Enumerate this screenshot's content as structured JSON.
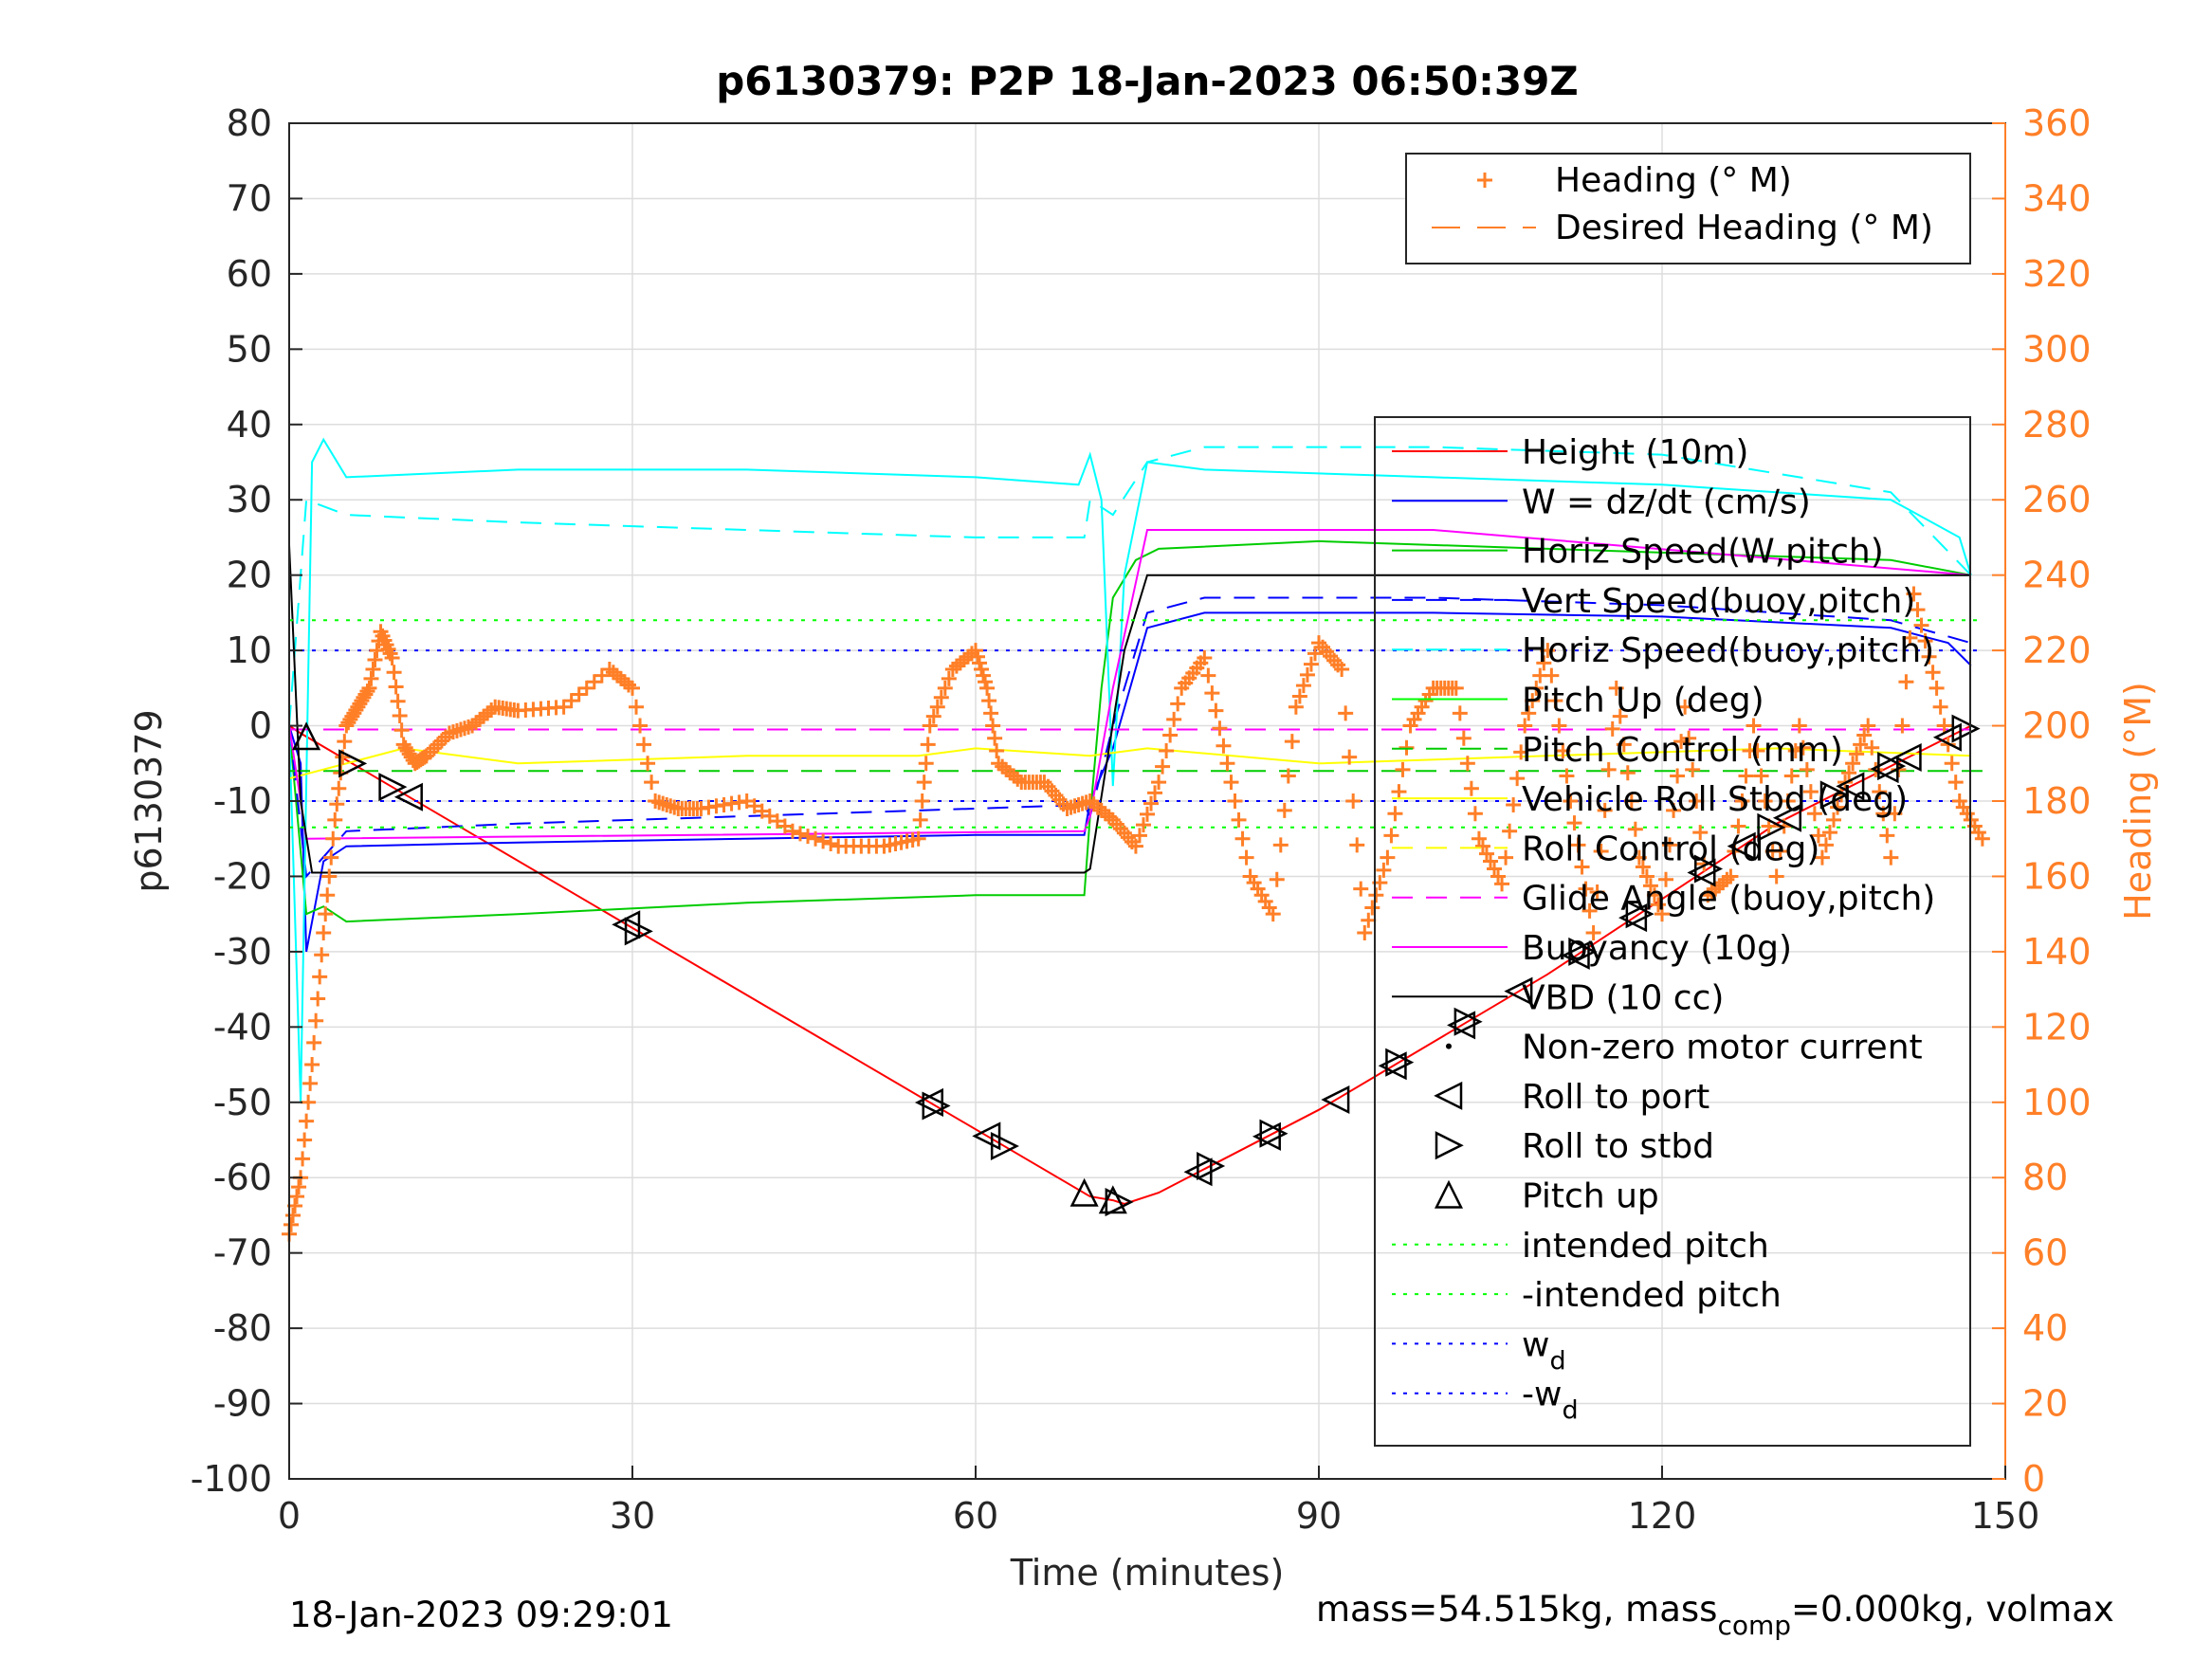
{
  "chart_data": {
    "type": "line",
    "title": "p6130379: P2P 18-Jan-2023 06:50:39Z",
    "xlabel": "Time (minutes)",
    "ylabel": "p6130379",
    "ylabel_right": "Heading (°M)",
    "xlim": [
      0,
      150
    ],
    "ylim": [
      -100,
      80
    ],
    "ylim_right": [
      0,
      360
    ],
    "xticks": [
      "0",
      "30",
      "60",
      "90",
      "120",
      "150"
    ],
    "yticks": [
      "80",
      "70",
      "60",
      "50",
      "40",
      "30",
      "20",
      "10",
      "0",
      "-10",
      "-20",
      "-30",
      "-40",
      "-50",
      "-60",
      "-70",
      "-80",
      "-90",
      "-100"
    ],
    "yticks_right": [
      "360",
      "340",
      "320",
      "300",
      "280",
      "260",
      "240",
      "220",
      "200",
      "180",
      "160",
      "140",
      "120",
      "100",
      "80",
      "60",
      "40",
      "20",
      "0"
    ],
    "grid": true,
    "footer_left": "18-Jan-2023 09:29:01",
    "footer_right": {
      "a": "mass=54.515kg, mass",
      "sub": "comp",
      "b": "=0.000kg, volmax"
    },
    "legend_heading": [
      {
        "name": "Heading (° M)",
        "color": "#ff7f27",
        "marker": "+"
      },
      {
        "name": "Desired Heading (° M)",
        "color": "#ff7f27",
        "style": "dashed"
      }
    ],
    "legend_main": [
      {
        "name": "Height (10m)",
        "color": "#ff0000",
        "style": "solid"
      },
      {
        "name": "W = dz/dt (cm/s)",
        "color": "#0000ff",
        "style": "solid"
      },
      {
        "name": "Horiz Speed(W,pitch)",
        "color": "#00cc00",
        "style": "solid"
      },
      {
        "name": "Vert Speed(buoy,pitch)",
        "color": "#0000ff",
        "style": "dashed"
      },
      {
        "name": "Horiz Speed(buoy,pitch)",
        "color": "#00ffff",
        "style": "dashed"
      },
      {
        "name": "Pitch Up (deg)",
        "color": "#00ff00",
        "style": "solid"
      },
      {
        "name": "Pitch Control (mm)",
        "color": "#00cc00",
        "style": "dashed"
      },
      {
        "name": "Vehicle Roll Stbd (deg)",
        "color": "#ffff00",
        "style": "solid"
      },
      {
        "name": "Roll Control (deg)",
        "color": "#ffff00",
        "style": "dashed"
      },
      {
        "name": "Glide Angle (buoy,pitch)",
        "color": "#ff00ff",
        "style": "dashed"
      },
      {
        "name": "Buoyancy (10g)",
        "color": "#ff00ff",
        "style": "solid"
      },
      {
        "name": "VBD (10 cc)",
        "color": "#000000",
        "style": "solid"
      },
      {
        "name": "Non-zero motor current",
        "color": "#000000",
        "marker": "dot"
      },
      {
        "name": "Roll to port",
        "color": "#000000",
        "marker": "tri-left"
      },
      {
        "name": "Roll to stbd",
        "color": "#000000",
        "marker": "tri-right"
      },
      {
        "name": "Pitch up",
        "color": "#000000",
        "marker": "tri-up"
      },
      {
        "name": "intended pitch",
        "color": "#00ff00",
        "style": "dotted"
      },
      {
        "name": "-intended pitch",
        "color": "#00ff00",
        "style": "dotted"
      },
      {
        "name": "w",
        "sub": "d",
        "color": "#0000ff",
        "style": "dotted"
      },
      {
        "name": "-w",
        "sub": "d",
        "color": "#0000ff",
        "style": "dotted"
      }
    ],
    "series": [
      {
        "name": "Height (10m)",
        "color": "#ff0000",
        "x": [
          0,
          1,
          70,
          72,
          73,
          76,
          90,
          110,
          130,
          147
        ],
        "y": [
          0,
          -1,
          -62.5,
          -63,
          -63.5,
          -62,
          -51,
          -33,
          -13,
          0
        ]
      },
      {
        "name": "W = dz/dt (cm/s)",
        "color": "#0000ff",
        "x": [
          0,
          1,
          1.5,
          3,
          5,
          20,
          40,
          60,
          69.5,
          70,
          72,
          75,
          80,
          100,
          120,
          140,
          145,
          147
        ],
        "y": [
          0,
          -5,
          -30,
          -18,
          -16,
          -15.5,
          -15,
          -14.5,
          -14.5,
          -10,
          -3,
          13,
          15,
          15,
          14.5,
          13,
          11,
          8
        ]
      },
      {
        "name": "Horiz Speed(W,pitch)",
        "color": "#00cc00",
        "x": [
          0,
          1.5,
          3,
          5,
          20,
          40,
          60,
          69.5,
          70,
          71,
          72,
          74,
          76,
          90,
          110,
          140,
          147
        ],
        "y": [
          0,
          -25,
          -24,
          -26,
          -25,
          -23.5,
          -22.5,
          -22.5,
          -12,
          5,
          17,
          22,
          23.5,
          24.5,
          23.5,
          22,
          20
        ]
      },
      {
        "name": "Vert Speed(buoy,pitch)",
        "color": "#0000ff",
        "x": [
          0,
          1.5,
          5,
          20,
          40,
          60,
          69.5,
          70,
          72,
          75,
          80,
          100,
          120,
          140,
          147
        ],
        "y": [
          0,
          -20,
          -14,
          -13,
          -12,
          -11,
          -10.5,
          -12,
          0,
          15,
          17,
          17,
          16,
          14,
          11
        ]
      },
      {
        "name": "Horiz Speed(buoy,pitch)",
        "color": "#00ffff",
        "x": [
          0,
          1.5,
          5,
          20,
          40,
          60,
          69.5,
          70,
          72,
          75,
          80,
          100,
          120,
          140,
          147
        ],
        "y": [
          0,
          30,
          28,
          27,
          26,
          25,
          25,
          30,
          28,
          35,
          37,
          37,
          36,
          31,
          20
        ]
      },
      {
        "name": "Pitch Up (deg)",
        "color": "#00ffff",
        "x": [
          0,
          1,
          2,
          3,
          5,
          20,
          40,
          60,
          69,
          70,
          71,
          72,
          73,
          75,
          80,
          100,
          120,
          140,
          146,
          147
        ],
        "y": [
          0,
          -50,
          35,
          38,
          33,
          34,
          34,
          33,
          32,
          36,
          30,
          -8,
          20,
          35,
          34,
          33,
          32,
          30,
          25,
          20
        ]
      },
      {
        "name": "Pitch Control (mm)",
        "color": "#00cc00",
        "x": [
          0,
          148
        ],
        "y": [
          -6,
          -6
        ]
      },
      {
        "name": "Vehicle Roll Stbd (deg)",
        "color": "#ffff00",
        "x": [
          0,
          10,
          20,
          40,
          55,
          60,
          70,
          75,
          90,
          110,
          130,
          147
        ],
        "y": [
          -7,
          -3,
          -5,
          -4,
          -4,
          -3,
          -4,
          -3,
          -5,
          -4,
          -3,
          -4
        ]
      },
      {
        "name": "Buoyancy (10g)",
        "color": "#ff00ff",
        "x": [
          0,
          1.5,
          69.5,
          70,
          72,
          75,
          100,
          147
        ],
        "y": [
          0,
          -15,
          -14,
          -12,
          5,
          26,
          26,
          20
        ]
      },
      {
        "name": "Glide Angle (buoy,pitch)",
        "color": "#ff00ff",
        "x": [
          0,
          147
        ],
        "y": [
          -0.5,
          -0.5
        ]
      },
      {
        "name": "VBD (10 cc)",
        "color": "#000000",
        "x": [
          0,
          1,
          2,
          69.5,
          70,
          73,
          75,
          147
        ],
        "y": [
          24,
          -10,
          -19.5,
          -19.5,
          -19,
          10,
          20,
          20
        ]
      },
      {
        "name": "intended pitch",
        "color": "#00ff00",
        "x": [
          0,
          148
        ],
        "y": [
          14,
          14
        ]
      },
      {
        "name": "-intended pitch",
        "color": "#00ff00",
        "x": [
          0,
          148
        ],
        "y": [
          -13.5,
          -13.5
        ]
      },
      {
        "name": "w_d",
        "color": "#0000ff",
        "x": [
          0,
          148
        ],
        "y": [
          10,
          10
        ]
      },
      {
        "name": "-w_d",
        "color": "#0000ff",
        "x": [
          0,
          148
        ],
        "y": [
          -10,
          -10
        ]
      },
      {
        "name": "Heading (° M)",
        "color": "#ff7f27",
        "axis": "right",
        "x": [
          0,
          1,
          2,
          3,
          4,
          5,
          6,
          7,
          8,
          9,
          10,
          11,
          12,
          14,
          16,
          18,
          20,
          24,
          28,
          30,
          32,
          34,
          36,
          40,
          44,
          48,
          52,
          55,
          56,
          58,
          60,
          61,
          62,
          64,
          66,
          68,
          70,
          72,
          74,
          76,
          78,
          80,
          82,
          84,
          86,
          88,
          90,
          92,
          94,
          96,
          98,
          100,
          102,
          104,
          106,
          108,
          110,
          112,
          114,
          116,
          118,
          120,
          122,
          124,
          126,
          128,
          130,
          132,
          134,
          136,
          138,
          140,
          142,
          144,
          146,
          148
        ],
        "y": [
          65,
          80,
          110,
          145,
          175,
          200,
          205,
          210,
          225,
          218,
          195,
          190,
          192,
          198,
          200,
          205,
          204,
          205,
          215,
          210,
          180,
          178,
          178,
          180,
          172,
          168,
          168,
          170,
          200,
          215,
          220,
          210,
          190,
          185,
          185,
          178,
          180,
          175,
          168,
          185,
          210,
          218,
          190,
          160,
          150,
          205,
          222,
          215,
          145,
          165,
          200,
          210,
          210,
          170,
          158,
          200,
          220,
          180,
          145,
          210,
          165,
          150,
          205,
          155,
          160,
          200,
          160,
          200,
          165,
          185,
          200,
          165,
          235,
          210,
          180,
          170
        ]
      }
    ]
  }
}
